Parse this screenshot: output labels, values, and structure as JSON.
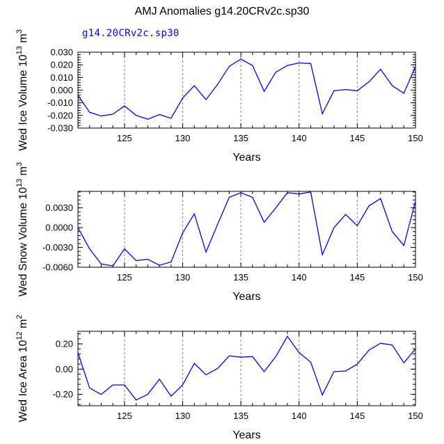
{
  "title": "AMJ Anomalies g14.20CRv2c.sp30",
  "run_label": "g14.20CRv2c.sp30",
  "colors": {
    "series": "#0000ff",
    "axis": "#000000",
    "grid": "#808080"
  },
  "chart_data": [
    {
      "type": "line",
      "ylabel": "Wed Ice Volume 10^13 m^3",
      "ylabel_parts": {
        "base": "Wed Ice Volume 10",
        "exp1": "13",
        "mid": " m",
        "exp2": "3"
      },
      "xlabel": "Years",
      "xlim": [
        121,
        150
      ],
      "ylim": [
        -0.03,
        0.03
      ],
      "x_ticks": [
        125,
        130,
        135,
        140,
        145,
        150
      ],
      "x_tick_labels": [
        "125",
        "130",
        "135",
        "140",
        "145",
        "150"
      ],
      "y_ticks": [
        -0.03,
        -0.02,
        -0.01,
        0.0,
        0.01,
        0.02,
        0.03
      ],
      "y_tick_labels": [
        "-0.030",
        "-0.020",
        "-0.010",
        "0.000",
        "0.010",
        "0.020",
        "0.030"
      ],
      "vlines": [
        125,
        130,
        135,
        140,
        145
      ],
      "series": [
        {
          "x": [
            121,
            122,
            123,
            124,
            125,
            126,
            127,
            128,
            129,
            130,
            131,
            132,
            133,
            134,
            135,
            136,
            137,
            138,
            139,
            140,
            141,
            142,
            143,
            144,
            145,
            146,
            147,
            148,
            149,
            150
          ],
          "values": [
            -0.004,
            -0.0175,
            -0.0205,
            -0.019,
            -0.0125,
            -0.02,
            -0.023,
            -0.0193,
            -0.0223,
            -0.0062,
            0.0035,
            -0.0075,
            0.0045,
            0.0188,
            0.0245,
            0.0195,
            -0.001,
            0.0142,
            0.0195,
            0.0215,
            0.021,
            -0.0187,
            -0.0005,
            0.0005,
            -0.0005,
            0.0065,
            0.0165,
            0.0035,
            -0.0025,
            0.0185
          ]
        }
      ]
    },
    {
      "type": "line",
      "ylabel": "Wed Snow Volume 10^13 m^3",
      "ylabel_parts": {
        "base": "Wed Snow Volume 10",
        "exp1": "13",
        "mid": " m",
        "exp2": "3"
      },
      "xlabel": "Years",
      "xlim": [
        121,
        150
      ],
      "ylim": [
        -0.006,
        0.0055
      ],
      "x_ticks": [
        125,
        130,
        135,
        140,
        145,
        150
      ],
      "x_tick_labels": [
        "125",
        "130",
        "135",
        "140",
        "145",
        "150"
      ],
      "y_ticks": [
        -0.006,
        -0.003,
        0.0,
        0.003
      ],
      "y_tick_labels": [
        "-0.0060",
        "-0.0030",
        "0.0000",
        "0.0030"
      ],
      "vlines": [
        125,
        130,
        135,
        140,
        145
      ],
      "series": [
        {
          "x": [
            121,
            122,
            123,
            124,
            125,
            126,
            127,
            128,
            129,
            130,
            131,
            132,
            133,
            134,
            135,
            136,
            137,
            138,
            139,
            140,
            141,
            142,
            143,
            144,
            145,
            146,
            147,
            148,
            149,
            150
          ],
          "values": [
            0.0,
            -0.0032,
            -0.0055,
            -0.0058,
            -0.0032,
            -0.005,
            -0.0048,
            -0.0057,
            -0.0052,
            -0.0008,
            0.0021,
            -0.0037,
            0.0005,
            0.0046,
            0.0053,
            0.0046,
            0.0008,
            0.003,
            0.0053,
            0.0051,
            0.0054,
            -0.0041,
            0.0,
            0.002,
            0.0003,
            0.0033,
            0.0044,
            -0.0006,
            -0.0027,
            0.004
          ]
        }
      ]
    },
    {
      "type": "line",
      "ylabel": "Wed Ice Area 10^12 m^2",
      "ylabel_parts": {
        "base": "Wed Ice Area 10",
        "exp1": "12",
        "mid": " m",
        "exp2": "2"
      },
      "xlabel": "Years",
      "xlim": [
        121,
        150
      ],
      "ylim": [
        -0.29,
        0.3
      ],
      "x_ticks": [
        125,
        130,
        135,
        140,
        145,
        150
      ],
      "x_tick_labels": [
        "125",
        "130",
        "135",
        "140",
        "145",
        "150"
      ],
      "y_ticks": [
        -0.2,
        0.0,
        0.2
      ],
      "y_tick_labels": [
        "-0.20",
        "0.00",
        "0.20"
      ],
      "vlines": [
        125,
        130,
        135,
        140,
        145
      ],
      "series": [
        {
          "x": [
            121,
            122,
            123,
            124,
            125,
            126,
            127,
            128,
            129,
            130,
            131,
            132,
            133,
            134,
            135,
            136,
            137,
            138,
            139,
            140,
            141,
            142,
            143,
            144,
            145,
            146,
            147,
            148,
            149,
            150
          ],
          "values": [
            0.13,
            -0.15,
            -0.2,
            -0.125,
            -0.125,
            -0.245,
            -0.2,
            -0.08,
            -0.215,
            -0.125,
            0.045,
            -0.045,
            0.005,
            0.105,
            0.095,
            0.1,
            -0.02,
            0.1,
            0.26,
            0.13,
            0.055,
            -0.205,
            -0.02,
            -0.015,
            0.04,
            0.15,
            0.205,
            0.19,
            0.05,
            0.16
          ]
        }
      ]
    }
  ]
}
